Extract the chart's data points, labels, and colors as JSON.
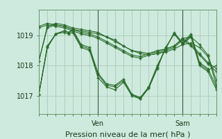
{
  "bg_color": "#ceeade",
  "grid_color": "#aacaba",
  "line_color": "#2a6b2a",
  "marker_color": "#2a6b2a",
  "xlabel": "Pression niveau de la mer( hPa )",
  "xlabel_fontsize": 8,
  "ylabel_ticks": [
    1017,
    1018,
    1019
  ],
  "xlim": [
    0,
    84
  ],
  "ylim": [
    1016.4,
    1019.85
  ],
  "ven_x": 28,
  "sam_x": 68,
  "series": [
    {
      "x": [
        0,
        4,
        8,
        12,
        16,
        20,
        24,
        28,
        32,
        36,
        40,
        44,
        48,
        52,
        56,
        60,
        64,
        68,
        72,
        76,
        80,
        84
      ],
      "y": [
        1018.15,
        1019.25,
        1019.35,
        1019.3,
        1019.2,
        1019.15,
        1019.1,
        1019.05,
        1018.95,
        1018.8,
        1018.65,
        1018.5,
        1018.4,
        1018.35,
        1018.4,
        1018.45,
        1018.55,
        1018.7,
        1018.75,
        1018.6,
        1018.3,
        1017.35
      ]
    },
    {
      "x": [
        0,
        4,
        8,
        12,
        16,
        20,
        24,
        28,
        32,
        36,
        40,
        44,
        48,
        52,
        56,
        60,
        64,
        68,
        72,
        76,
        80,
        84
      ],
      "y": [
        1018.15,
        1019.3,
        1019.4,
        1019.35,
        1019.25,
        1019.2,
        1019.15,
        1019.1,
        1018.95,
        1018.85,
        1018.65,
        1018.5,
        1018.45,
        1018.4,
        1018.5,
        1018.55,
        1018.65,
        1018.9,
        1018.95,
        1018.7,
        1018.35,
        1017.5
      ]
    },
    {
      "x": [
        0,
        4,
        8,
        12,
        14,
        16,
        20,
        24,
        28,
        32,
        36,
        40,
        44,
        48,
        52,
        56,
        60,
        64,
        68,
        72,
        76,
        80,
        84
      ],
      "y": [
        1017.05,
        1018.6,
        1019.05,
        1019.15,
        1019.1,
        1019.2,
        1018.7,
        1018.6,
        1017.75,
        1017.4,
        1017.35,
        1017.55,
        1017.05,
        1016.9,
        1017.3,
        1018.0,
        1018.55,
        1019.1,
        1018.75,
        1019.05,
        1018.1,
        1017.9,
        1017.3
      ]
    },
    {
      "x": [
        0,
        4,
        8,
        12,
        14,
        16,
        20,
        24,
        28,
        32,
        36,
        40,
        44,
        48,
        52,
        56,
        60,
        64,
        68,
        72,
        76,
        80,
        84
      ],
      "y": [
        1017.05,
        1018.6,
        1019.05,
        1019.1,
        1019.05,
        1019.1,
        1018.6,
        1018.5,
        1017.6,
        1017.3,
        1017.2,
        1017.45,
        1017.0,
        1016.9,
        1017.25,
        1017.9,
        1018.6,
        1019.05,
        1018.7,
        1018.95,
        1018.0,
        1017.8,
        1017.2
      ]
    },
    {
      "x": [
        0,
        4,
        8,
        12,
        14,
        16,
        20,
        24,
        28,
        32,
        36,
        40,
        44,
        48,
        52,
        56,
        60,
        64,
        68,
        72,
        76,
        80,
        84
      ],
      "y": [
        1017.05,
        1018.65,
        1019.05,
        1019.15,
        1019.1,
        1019.15,
        1018.65,
        1018.55,
        1017.7,
        1017.35,
        1017.3,
        1017.5,
        1017.05,
        1016.95,
        1017.3,
        1017.95,
        1018.6,
        1019.05,
        1018.72,
        1019.0,
        1018.05,
        1017.85,
        1018.0
      ]
    },
    {
      "x": [
        0,
        4,
        8,
        12,
        16,
        20,
        24,
        28,
        32,
        36,
        40,
        44,
        48,
        52,
        56,
        60,
        64,
        68,
        72,
        76,
        80,
        84
      ],
      "y": [
        1019.3,
        1019.4,
        1019.35,
        1019.3,
        1019.2,
        1019.1,
        1019.05,
        1018.95,
        1018.8,
        1018.65,
        1018.5,
        1018.35,
        1018.3,
        1018.4,
        1018.45,
        1018.55,
        1018.65,
        1018.9,
        1018.7,
        1018.4,
        1018.1,
        1017.9
      ]
    },
    {
      "x": [
        0,
        4,
        8,
        12,
        16,
        20,
        24,
        28,
        32,
        36,
        40,
        44,
        48,
        52,
        56,
        60,
        64,
        68,
        72,
        76,
        80,
        84
      ],
      "y": [
        1019.25,
        1019.35,
        1019.3,
        1019.25,
        1019.15,
        1019.05,
        1019.0,
        1018.9,
        1018.75,
        1018.6,
        1018.45,
        1018.3,
        1018.25,
        1018.35,
        1018.4,
        1018.5,
        1018.6,
        1018.85,
        1018.65,
        1018.35,
        1018.05,
        1017.8
      ]
    }
  ]
}
